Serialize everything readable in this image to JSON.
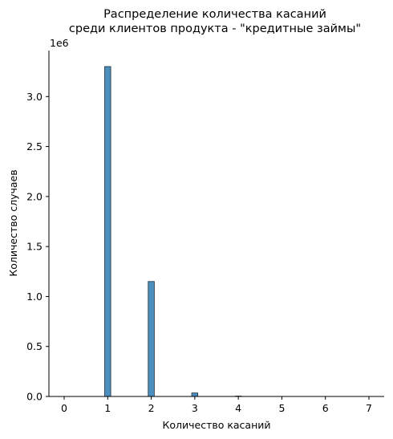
{
  "chart_data": {
    "type": "bar",
    "title_lines": [
      "Распределение количества касаний",
      "среди клиентов продукта - \"кредитные займы\""
    ],
    "xlabel": "Количество касаний",
    "ylabel": "Количество случаев",
    "y_offset_label": "1e6",
    "xlim": [
      -0.35,
      7.35
    ],
    "ylim": [
      0,
      3.46
    ],
    "x_ticks": [
      0,
      1,
      2,
      3,
      4,
      5,
      6,
      7
    ],
    "y_ticks": [
      0.0,
      0.5,
      1.0,
      1.5,
      2.0,
      2.5,
      3.0
    ],
    "y_tick_labels": [
      "0.0",
      "0.5",
      "1.0",
      "1.5",
      "2.0",
      "2.5",
      "3.0"
    ],
    "bin_width": 0.14,
    "bars": [
      {
        "x": 1,
        "value": 3.3
      },
      {
        "x": 2,
        "value": 1.15
      },
      {
        "x": 3,
        "value": 0.035
      },
      {
        "x": 4,
        "value": 0.004
      }
    ],
    "bar_color": "#4c8fbe",
    "bar_edge_color": "#1f2f3a"
  }
}
